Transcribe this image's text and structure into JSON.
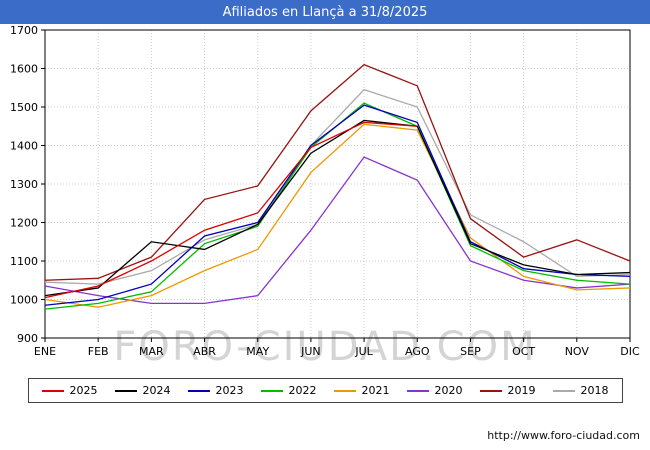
{
  "header": {
    "title": "Afiliados en Llançà a 31/8/2025",
    "accent_color": "#3b6cc7"
  },
  "watermark": "FORO-CIUDAD.COM",
  "footer": {
    "url": "http://www.foro-ciudad.com"
  },
  "chart_data": {
    "type": "line",
    "title": "Afiliados en Llançà a 31/8/2025",
    "categories": [
      "ENE",
      "FEB",
      "MAR",
      "ABR",
      "MAY",
      "JUN",
      "JUL",
      "AGO",
      "SEP",
      "OCT",
      "NOV",
      "DIC"
    ],
    "xlabel": "",
    "ylabel": "",
    "ylim": [
      900,
      1700
    ],
    "ytick_step": 100,
    "grid": true,
    "grid_color": "#cccccc",
    "legend_position": "bottom",
    "series": [
      {
        "name": "2025",
        "color": "#dd0000",
        "values": [
          1005,
          1035,
          1100,
          1180,
          1225,
          1395,
          1460,
          1450
        ]
      },
      {
        "name": "2024",
        "color": "#000000",
        "values": [
          1010,
          1030,
          1150,
          1130,
          1195,
          1380,
          1465,
          1450,
          1145,
          1090,
          1065,
          1070
        ]
      },
      {
        "name": "2023",
        "color": "#0000bb",
        "values": [
          985,
          1000,
          1040,
          1165,
          1200,
          1400,
          1505,
          1460,
          1150,
          1080,
          1065,
          1060
        ]
      },
      {
        "name": "2022",
        "color": "#00bb00",
        "values": [
          975,
          990,
          1020,
          1145,
          1190,
          1395,
          1510,
          1450,
          1140,
          1075,
          1050,
          1040
        ]
      },
      {
        "name": "2021",
        "color": "#ee9900",
        "values": [
          1000,
          980,
          1010,
          1075,
          1130,
          1330,
          1455,
          1440,
          1160,
          1060,
          1025,
          1030
        ]
      },
      {
        "name": "2020",
        "color": "#8833cc",
        "values": [
          1035,
          1010,
          990,
          990,
          1010,
          1180,
          1370,
          1310,
          1100,
          1050,
          1030,
          1040
        ]
      },
      {
        "name": "2019",
        "color": "#991111",
        "values": [
          1050,
          1055,
          1110,
          1260,
          1295,
          1490,
          1610,
          1555,
          1210,
          1110,
          1155,
          1100
        ]
      },
      {
        "name": "2018",
        "color": "#aaaaaa",
        "values": [
          1045,
          1040,
          1075,
          1155,
          1195,
          1400,
          1545,
          1500,
          1220,
          1150,
          1060,
          1065
        ]
      }
    ]
  }
}
